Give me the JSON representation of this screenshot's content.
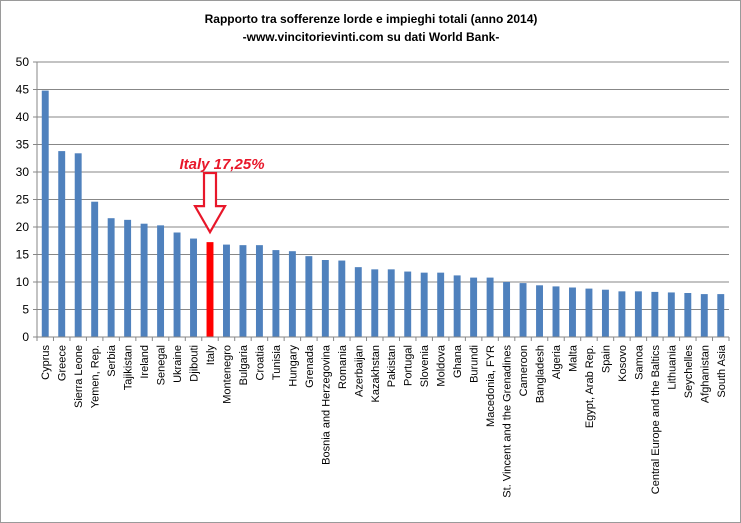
{
  "chart_data": {
    "type": "bar",
    "title": "Rapporto tra sofferenze lorde e impieghi totali (anno 2014)",
    "subtitle": "-www.vincitorievinti.com su dati World Bank-",
    "xlabel": "",
    "ylabel": "",
    "ylim": [
      0,
      50
    ],
    "yticks": [
      0,
      5,
      10,
      15,
      20,
      25,
      30,
      35,
      40,
      45,
      50
    ],
    "grid": "horizontal",
    "legend": "none",
    "categories": [
      "Cyprus",
      "Greece",
      "Sierra Leone",
      "Yemen, Rep.",
      "Serbia",
      "Tajikistan",
      "Ireland",
      "Senegal",
      "Ukraine",
      "Djibouti",
      "Italy",
      "Montenegro",
      "Bulgaria",
      "Croatia",
      "Tunisia",
      "Hungary",
      "Grenada",
      "Bosnia and Herzegovina",
      "Romania",
      "Azerbaijan",
      "Kazakhstan",
      "Pakistan",
      "Portugal",
      "Slovenia",
      "Moldova",
      "Ghana",
      "Burundi",
      "Macedonia, FYR",
      "St. Vincent and the Grenadines",
      "Cameroon",
      "Bangladesh",
      "Algeria",
      "Malta",
      "Egypt, Arab Rep.",
      "Spain",
      "Kosovo",
      "Samoa",
      "Central Europe and the Baltics",
      "Lithuania",
      "Seychelles",
      "Afghanistan",
      "South Asia"
    ],
    "values": [
      44.8,
      33.8,
      33.4,
      24.6,
      21.6,
      21.3,
      20.6,
      20.3,
      19.0,
      17.9,
      17.25,
      16.8,
      16.7,
      16.7,
      15.8,
      15.6,
      14.7,
      14.0,
      13.9,
      12.7,
      12.3,
      12.3,
      11.9,
      11.7,
      11.7,
      11.2,
      10.8,
      10.8,
      10.0,
      9.8,
      9.4,
      9.2,
      9.0,
      8.8,
      8.6,
      8.3,
      8.3,
      8.2,
      8.1,
      8.0,
      7.8,
      7.8
    ],
    "colors": {
      "bar": "#4f81bd",
      "highlight": "#ff0000",
      "grid": "#878787",
      "annotation": "#e8172a"
    },
    "highlight_index": 10,
    "annotation": {
      "text": "Italy 17,25%",
      "target": "Italy"
    }
  }
}
